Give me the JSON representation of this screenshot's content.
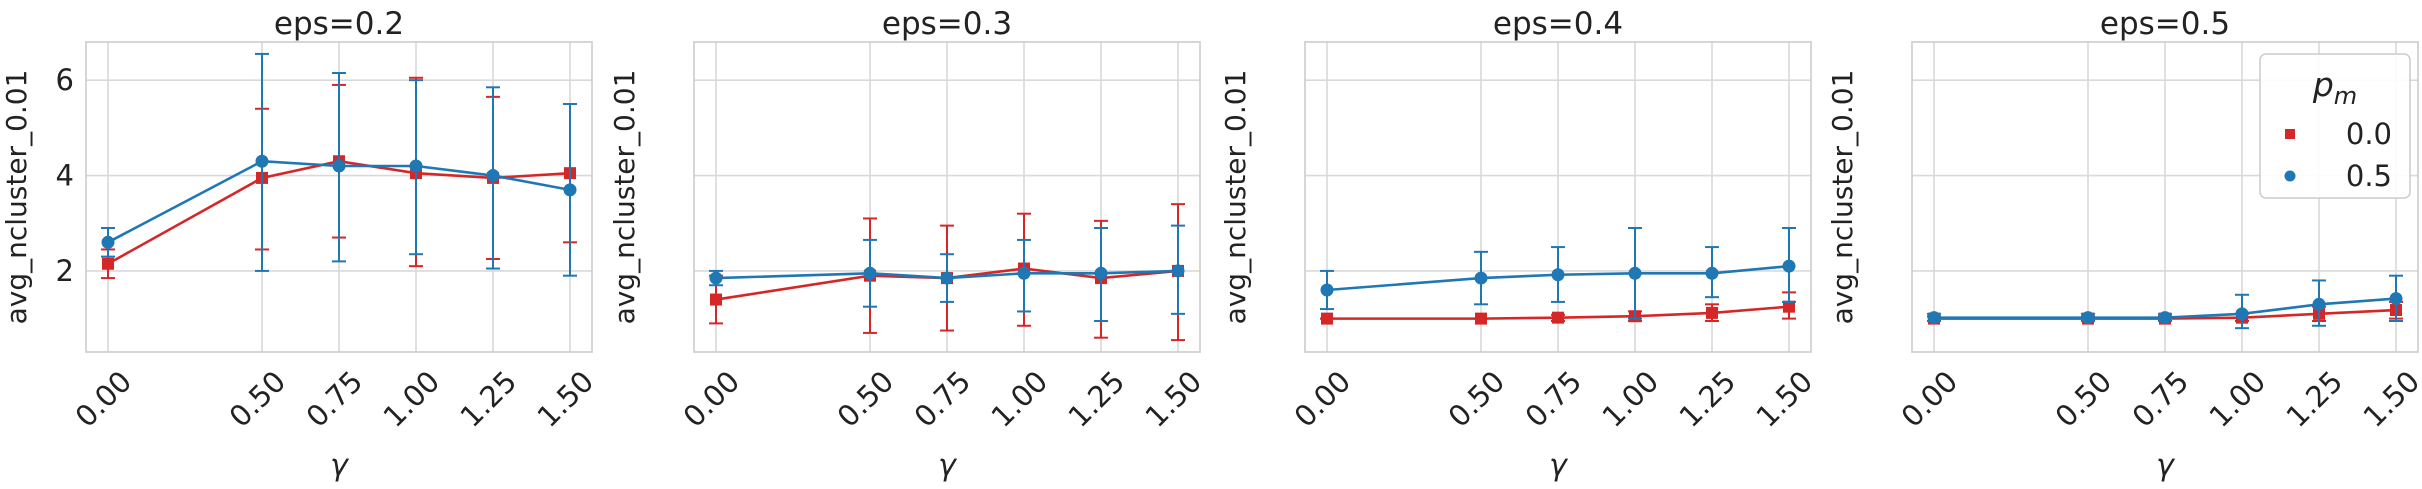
{
  "chart_data": [
    {
      "type": "line",
      "title": "eps=0.2",
      "xlabel": "γ",
      "ylabel": "avg_ncluster_0.01",
      "x": [
        0.0,
        0.5,
        0.75,
        1.0,
        1.25,
        1.5
      ],
      "xtick_labels": [
        "0.00",
        "0.50",
        "0.75",
        "1.00",
        "1.25",
        "1.50"
      ],
      "ylim": [
        0.3,
        6.8
      ],
      "yticks": [
        2,
        4,
        6
      ],
      "series": [
        {
          "name": "0.0",
          "color": "#d62728",
          "marker": "square",
          "values": [
            2.15,
            3.95,
            4.3,
            4.05,
            3.95,
            4.05
          ],
          "err_low": [
            1.85,
            2.45,
            2.7,
            2.1,
            2.25,
            2.6
          ],
          "err_high": [
            2.45,
            5.4,
            5.9,
            6.05,
            5.65,
            5.5
          ]
        },
        {
          "name": "0.5",
          "color": "#1f77b4",
          "marker": "circle",
          "values": [
            2.6,
            4.3,
            4.2,
            4.2,
            4.0,
            3.7
          ],
          "err_low": [
            2.3,
            2.0,
            2.2,
            2.35,
            2.05,
            1.9
          ],
          "err_high": [
            2.9,
            6.55,
            6.15,
            6.0,
            5.85,
            5.5
          ]
        }
      ]
    },
    {
      "type": "line",
      "title": "eps=0.3",
      "xlabel": "γ",
      "ylabel": "avg_ncluster_0.01",
      "x": [
        0.0,
        0.5,
        0.75,
        1.0,
        1.25,
        1.5
      ],
      "xtick_labels": [
        "0.00",
        "0.50",
        "0.75",
        "1.00",
        "1.25",
        "1.50"
      ],
      "ylim": [
        0.3,
        6.8
      ],
      "yticks": [
        2,
        4,
        6
      ],
      "series": [
        {
          "name": "0.0",
          "color": "#d62728",
          "marker": "square",
          "values": [
            1.4,
            1.9,
            1.85,
            2.05,
            1.85,
            2.0
          ],
          "err_low": [
            0.9,
            0.7,
            0.75,
            0.85,
            0.6,
            0.55
          ],
          "err_high": [
            1.9,
            3.1,
            2.95,
            3.2,
            3.05,
            3.4
          ]
        },
        {
          "name": "0.5",
          "color": "#1f77b4",
          "marker": "circle",
          "values": [
            1.85,
            1.95,
            1.85,
            1.95,
            1.95,
            2.0
          ],
          "err_low": [
            1.7,
            1.25,
            1.35,
            1.15,
            0.95,
            1.1
          ],
          "err_high": [
            2.0,
            2.65,
            2.35,
            2.65,
            2.9,
            2.95
          ]
        }
      ]
    },
    {
      "type": "line",
      "title": "eps=0.4",
      "xlabel": "γ",
      "ylabel": "avg_ncluster_0.01",
      "x": [
        0.0,
        0.5,
        0.75,
        1.0,
        1.25,
        1.5
      ],
      "xtick_labels": [
        "0.00",
        "0.50",
        "0.75",
        "1.00",
        "1.25",
        "1.50"
      ],
      "ylim": [
        0.3,
        6.8
      ],
      "yticks": [
        2,
        4,
        6
      ],
      "series": [
        {
          "name": "0.0",
          "color": "#d62728",
          "marker": "square",
          "values": [
            1.0,
            1.0,
            1.02,
            1.05,
            1.12,
            1.25
          ],
          "err_low": [
            1.0,
            1.0,
            0.95,
            0.95,
            0.95,
            1.0
          ],
          "err_high": [
            1.0,
            1.0,
            1.08,
            1.15,
            1.3,
            1.55
          ]
        },
        {
          "name": "0.5",
          "color": "#1f77b4",
          "marker": "circle",
          "values": [
            1.6,
            1.85,
            1.92,
            1.95,
            1.95,
            2.1
          ],
          "err_low": [
            1.2,
            1.3,
            1.35,
            1.0,
            1.45,
            1.35
          ],
          "err_high": [
            2.0,
            2.4,
            2.5,
            2.9,
            2.5,
            2.9
          ]
        }
      ]
    },
    {
      "type": "line",
      "title": "eps=0.5",
      "xlabel": "γ",
      "ylabel": "avg_ncluster_0.01",
      "x": [
        0.0,
        0.5,
        0.75,
        1.0,
        1.25,
        1.5
      ],
      "xtick_labels": [
        "0.00",
        "0.50",
        "0.75",
        "1.00",
        "1.25",
        "1.50"
      ],
      "ylim": [
        0.3,
        6.8
      ],
      "yticks": [
        2,
        4,
        6
      ],
      "series": [
        {
          "name": "0.0",
          "color": "#d62728",
          "marker": "square",
          "values": [
            1.0,
            1.0,
            1.0,
            1.02,
            1.1,
            1.18
          ],
          "err_low": [
            0.95,
            0.95,
            0.95,
            0.95,
            0.95,
            1.0
          ],
          "err_high": [
            1.05,
            1.05,
            1.05,
            1.1,
            1.25,
            1.35
          ]
        },
        {
          "name": "0.5",
          "color": "#1f77b4",
          "marker": "circle",
          "values": [
            1.02,
            1.02,
            1.02,
            1.1,
            1.3,
            1.42
          ],
          "err_low": [
            0.95,
            0.95,
            0.95,
            0.8,
            0.85,
            0.95
          ],
          "err_high": [
            1.1,
            1.1,
            1.1,
            1.5,
            1.8,
            1.9
          ]
        }
      ]
    }
  ],
  "legend": {
    "title": "p",
    "title_sub": "m",
    "placement": "top-right of last panel",
    "entries": [
      {
        "label": "0.0",
        "color": "#d62728",
        "marker": "square"
      },
      {
        "label": "0.5",
        "color": "#1f77b4",
        "marker": "circle"
      }
    ]
  }
}
